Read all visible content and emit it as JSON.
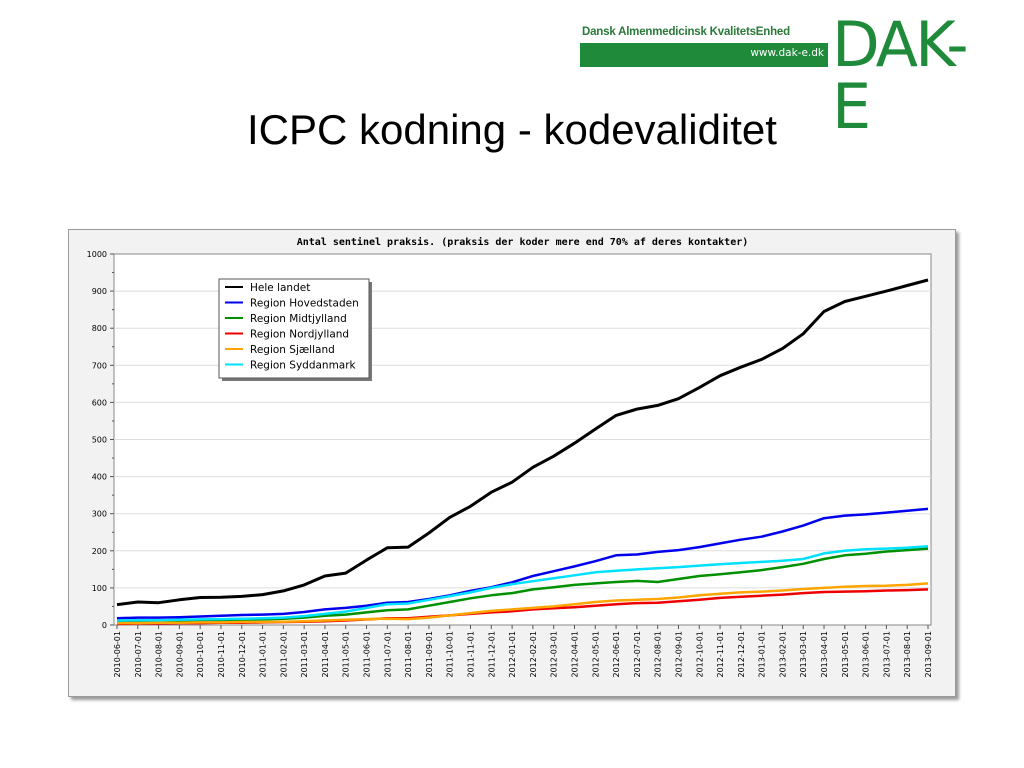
{
  "slide": {
    "title": "ICPC kodning - kodevaliditet",
    "logo": {
      "name": "Dansk Almenmedicinsk KvalitetsEnhed",
      "url": "www.dak-e.dk",
      "mark": "DAK-E",
      "color": "#1e8a3a"
    }
  },
  "chart_data": {
    "type": "line",
    "title": "Antal sentinel praksis. (praksis der koder mere end 70% af deres kontakter)",
    "xlabel": "",
    "ylabel": "",
    "ylim": [
      0,
      1000
    ],
    "yticks": [
      0,
      100,
      200,
      300,
      400,
      500,
      600,
      700,
      800,
      900,
      1000
    ],
    "grid": true,
    "legend_position": "top-left",
    "x": [
      "2010-06-01",
      "2010-07-01",
      "2010-08-01",
      "2010-09-01",
      "2010-10-01",
      "2010-11-01",
      "2010-12-01",
      "2011-01-01",
      "2011-02-01",
      "2011-03-01",
      "2011-04-01",
      "2011-05-01",
      "2011-06-01",
      "2011-07-01",
      "2011-08-01",
      "2011-09-01",
      "2011-10-01",
      "2011-11-01",
      "2011-12-01",
      "2012-01-01",
      "2012-02-01",
      "2012-03-01",
      "2012-04-01",
      "2012-05-01",
      "2012-06-01",
      "2012-07-01",
      "2012-08-01",
      "2012-09-01",
      "2012-10-01",
      "2012-11-01",
      "2012-12-01",
      "2013-01-01",
      "2013-02-01",
      "2013-03-01",
      "2013-04-01",
      "2013-05-01",
      "2013-06-01",
      "2013-07-01",
      "2013-08-01",
      "2013-09-01"
    ],
    "series": [
      {
        "name": "Hele landet",
        "color": "#000000",
        "values": [
          55,
          62,
          60,
          68,
          74,
          75,
          77,
          82,
          92,
          108,
          132,
          140,
          175,
          208,
          210,
          248,
          290,
          320,
          358,
          385,
          425,
          455,
          490,
          528,
          565,
          582,
          592,
          610,
          640,
          672,
          695,
          716,
          745,
          785,
          845,
          872,
          886,
          900,
          915,
          930
        ]
      },
      {
        "name": "Region Hovedstaden",
        "color": "#0000ee",
        "values": [
          18,
          20,
          20,
          21,
          23,
          25,
          27,
          28,
          30,
          35,
          42,
          46,
          52,
          60,
          62,
          70,
          80,
          92,
          102,
          115,
          132,
          145,
          158,
          172,
          188,
          190,
          197,
          202,
          210,
          220,
          230,
          238,
          252,
          268,
          288,
          295,
          298,
          303,
          308,
          313
        ]
      },
      {
        "name": "Region Midtjylland",
        "color": "#009000",
        "values": [
          10,
          10,
          11,
          11,
          12,
          13,
          14,
          15,
          17,
          20,
          25,
          28,
          34,
          40,
          42,
          52,
          62,
          72,
          80,
          86,
          96,
          102,
          108,
          112,
          116,
          119,
          116,
          124,
          132,
          137,
          142,
          148,
          156,
          165,
          178,
          188,
          192,
          198,
          202,
          206
        ]
      },
      {
        "name": "Region Nordjylland",
        "color": "#ee0000",
        "values": [
          3,
          4,
          4,
          5,
          5,
          6,
          6,
          7,
          8,
          9,
          10,
          12,
          15,
          18,
          18,
          22,
          26,
          30,
          34,
          37,
          42,
          45,
          48,
          52,
          56,
          59,
          60,
          64,
          68,
          73,
          76,
          79,
          82,
          86,
          89,
          90,
          91,
          93,
          94,
          96
        ]
      },
      {
        "name": "Region Sjælland",
        "color": "#ffa500",
        "values": [
          5,
          5,
          6,
          6,
          7,
          7,
          8,
          8,
          9,
          10,
          12,
          14,
          16,
          17,
          16,
          20,
          26,
          32,
          38,
          42,
          46,
          50,
          56,
          62,
          66,
          68,
          70,
          74,
          80,
          84,
          88,
          90,
          93,
          97,
          100,
          103,
          105,
          106,
          108,
          112
        ]
      },
      {
        "name": "Region Syddanmark",
        "color": "#00e0ff",
        "values": [
          12,
          13,
          13,
          14,
          15,
          16,
          17,
          18,
          20,
          24,
          30,
          36,
          46,
          56,
          58,
          68,
          78,
          88,
          100,
          110,
          118,
          126,
          134,
          142,
          146,
          150,
          153,
          156,
          160,
          164,
          167,
          170,
          173,
          178,
          193,
          200,
          204,
          206,
          208,
          212
        ]
      }
    ]
  }
}
